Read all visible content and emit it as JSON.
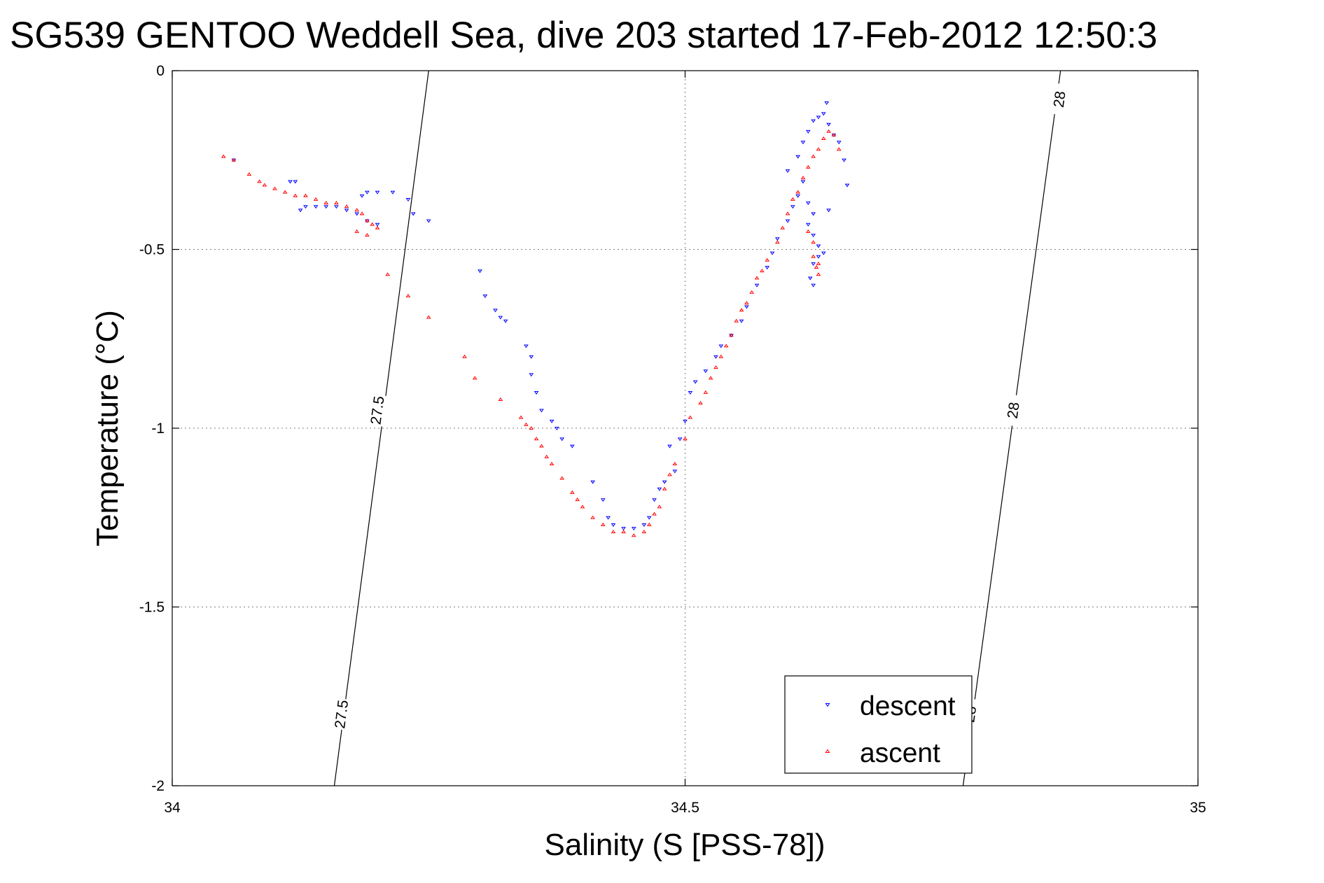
{
  "chart_data": {
    "type": "scatter",
    "title": "SG539 GENTOO Weddell Sea, dive 203 started 17-Feb-2012 12:50:3",
    "xlabel": "Salinity (S [PSS-78])",
    "ylabel": "Temperature (°C)",
    "xlim": [
      34,
      35
    ],
    "ylim": [
      -2,
      0
    ],
    "xticks": [
      34,
      34.5,
      35
    ],
    "xtick_labels": [
      "34",
      "34.5",
      "35"
    ],
    "yticks": [
      0,
      -0.5,
      -1,
      -1.5,
      -2
    ],
    "ytick_labels": [
      "0",
      "-0.5",
      "-1",
      "-1.5",
      "-2"
    ],
    "grid": true,
    "legend_position": "bottom-right",
    "density_contours": [
      {
        "level_label": "27.5",
        "points": [
          [
            34.25,
            0.0
          ],
          [
            34.158,
            -2.0
          ]
        ],
        "label_positions": [
          [
            34.2,
            -0.95
          ],
          [
            34.165,
            -1.8
          ]
        ]
      },
      {
        "level_label": "28",
        "points": [
          [
            34.866,
            0.0
          ],
          [
            34.771,
            -2.0
          ]
        ],
        "label_positions": [
          [
            34.865,
            -0.08
          ],
          [
            34.82,
            -0.95
          ],
          [
            34.778,
            -1.8
          ]
        ]
      }
    ],
    "series": [
      {
        "name": "descent",
        "marker": "triangle-down",
        "color": "#0000ff",
        "points": [
          [
            34.06,
            -0.25
          ],
          [
            34.115,
            -0.31
          ],
          [
            34.12,
            -0.31
          ],
          [
            34.125,
            -0.39
          ],
          [
            34.13,
            -0.38
          ],
          [
            34.14,
            -0.38
          ],
          [
            34.15,
            -0.38
          ],
          [
            34.16,
            -0.38
          ],
          [
            34.17,
            -0.39
          ],
          [
            34.18,
            -0.4
          ],
          [
            34.19,
            -0.42
          ],
          [
            34.2,
            -0.43
          ],
          [
            34.185,
            -0.35
          ],
          [
            34.19,
            -0.34
          ],
          [
            34.2,
            -0.34
          ],
          [
            34.215,
            -0.34
          ],
          [
            34.23,
            -0.36
          ],
          [
            34.235,
            -0.4
          ],
          [
            34.25,
            -0.42
          ],
          [
            34.3,
            -0.56
          ],
          [
            34.305,
            -0.63
          ],
          [
            34.315,
            -0.67
          ],
          [
            34.325,
            -0.7
          ],
          [
            34.32,
            -0.69
          ],
          [
            34.345,
            -0.77
          ],
          [
            34.35,
            -0.8
          ],
          [
            34.35,
            -0.85
          ],
          [
            34.355,
            -0.9
          ],
          [
            34.36,
            -0.95
          ],
          [
            34.37,
            -0.98
          ],
          [
            34.375,
            -1.0
          ],
          [
            34.38,
            -1.03
          ],
          [
            34.39,
            -1.05
          ],
          [
            34.41,
            -1.15
          ],
          [
            34.42,
            -1.2
          ],
          [
            34.425,
            -1.25
          ],
          [
            34.43,
            -1.27
          ],
          [
            34.44,
            -1.28
          ],
          [
            34.45,
            -1.28
          ],
          [
            34.46,
            -1.27
          ],
          [
            34.465,
            -1.25
          ],
          [
            34.47,
            -1.2
          ],
          [
            34.475,
            -1.17
          ],
          [
            34.48,
            -1.15
          ],
          [
            34.49,
            -1.12
          ],
          [
            34.485,
            -1.05
          ],
          [
            34.495,
            -1.03
          ],
          [
            34.5,
            -0.98
          ],
          [
            34.505,
            -0.9
          ],
          [
            34.51,
            -0.87
          ],
          [
            34.52,
            -0.84
          ],
          [
            34.53,
            -0.8
          ],
          [
            34.535,
            -0.77
          ],
          [
            34.545,
            -0.74
          ],
          [
            34.555,
            -0.7
          ],
          [
            34.56,
            -0.66
          ],
          [
            34.57,
            -0.6
          ],
          [
            34.58,
            -0.55
          ],
          [
            34.585,
            -0.51
          ],
          [
            34.59,
            -0.47
          ],
          [
            34.6,
            -0.42
          ],
          [
            34.605,
            -0.38
          ],
          [
            34.61,
            -0.35
          ],
          [
            34.615,
            -0.31
          ],
          [
            34.6,
            -0.28
          ],
          [
            34.61,
            -0.24
          ],
          [
            34.615,
            -0.2
          ],
          [
            34.62,
            -0.17
          ],
          [
            34.625,
            -0.14
          ],
          [
            34.63,
            -0.13
          ],
          [
            34.635,
            -0.12
          ],
          [
            34.638,
            -0.09
          ],
          [
            34.64,
            -0.15
          ],
          [
            34.645,
            -0.18
          ],
          [
            34.65,
            -0.2
          ],
          [
            34.655,
            -0.25
          ],
          [
            34.658,
            -0.32
          ],
          [
            34.62,
            -0.37
          ],
          [
            34.625,
            -0.4
          ],
          [
            34.64,
            -0.39
          ],
          [
            34.62,
            -0.43
          ],
          [
            34.625,
            -0.46
          ],
          [
            34.63,
            -0.49
          ],
          [
            34.63,
            -0.52
          ],
          [
            34.635,
            -0.51
          ],
          [
            34.625,
            -0.54
          ],
          [
            34.622,
            -0.58
          ],
          [
            34.625,
            -0.6
          ]
        ]
      },
      {
        "name": "ascent",
        "marker": "triangle-up",
        "color": "#ff0000",
        "points": [
          [
            34.05,
            -0.24
          ],
          [
            34.06,
            -0.25
          ],
          [
            34.075,
            -0.29
          ],
          [
            34.085,
            -0.31
          ],
          [
            34.09,
            -0.32
          ],
          [
            34.1,
            -0.33
          ],
          [
            34.11,
            -0.34
          ],
          [
            34.12,
            -0.35
          ],
          [
            34.13,
            -0.35
          ],
          [
            34.14,
            -0.36
          ],
          [
            34.15,
            -0.37
          ],
          [
            34.16,
            -0.37
          ],
          [
            34.17,
            -0.38
          ],
          [
            34.18,
            -0.39
          ],
          [
            34.185,
            -0.4
          ],
          [
            34.19,
            -0.42
          ],
          [
            34.195,
            -0.43
          ],
          [
            34.2,
            -0.44
          ],
          [
            34.18,
            -0.45
          ],
          [
            34.19,
            -0.46
          ],
          [
            34.21,
            -0.57
          ],
          [
            34.23,
            -0.63
          ],
          [
            34.25,
            -0.69
          ],
          [
            34.285,
            -0.8
          ],
          [
            34.295,
            -0.86
          ],
          [
            34.32,
            -0.92
          ],
          [
            34.34,
            -0.97
          ],
          [
            34.345,
            -0.99
          ],
          [
            34.35,
            -1.0
          ],
          [
            34.355,
            -1.03
          ],
          [
            34.36,
            -1.05
          ],
          [
            34.365,
            -1.08
          ],
          [
            34.37,
            -1.1
          ],
          [
            34.38,
            -1.14
          ],
          [
            34.39,
            -1.18
          ],
          [
            34.395,
            -1.2
          ],
          [
            34.4,
            -1.22
          ],
          [
            34.41,
            -1.25
          ],
          [
            34.42,
            -1.27
          ],
          [
            34.43,
            -1.29
          ],
          [
            34.44,
            -1.29
          ],
          [
            34.45,
            -1.3
          ],
          [
            34.46,
            -1.29
          ],
          [
            34.465,
            -1.27
          ],
          [
            34.47,
            -1.24
          ],
          [
            34.475,
            -1.22
          ],
          [
            34.48,
            -1.17
          ],
          [
            34.485,
            -1.13
          ],
          [
            34.49,
            -1.1
          ],
          [
            34.5,
            -1.03
          ],
          [
            34.505,
            -0.97
          ],
          [
            34.515,
            -0.93
          ],
          [
            34.52,
            -0.9
          ],
          [
            34.525,
            -0.86
          ],
          [
            34.53,
            -0.83
          ],
          [
            34.535,
            -0.8
          ],
          [
            34.54,
            -0.77
          ],
          [
            34.545,
            -0.74
          ],
          [
            34.55,
            -0.7
          ],
          [
            34.555,
            -0.67
          ],
          [
            34.56,
            -0.65
          ],
          [
            34.565,
            -0.62
          ],
          [
            34.57,
            -0.58
          ],
          [
            34.575,
            -0.56
          ],
          [
            34.58,
            -0.53
          ],
          [
            34.59,
            -0.48
          ],
          [
            34.595,
            -0.44
          ],
          [
            34.6,
            -0.4
          ],
          [
            34.605,
            -0.36
          ],
          [
            34.61,
            -0.34
          ],
          [
            34.615,
            -0.3
          ],
          [
            34.62,
            -0.27
          ],
          [
            34.625,
            -0.24
          ],
          [
            34.63,
            -0.22
          ],
          [
            34.635,
            -0.19
          ],
          [
            34.64,
            -0.17
          ],
          [
            34.645,
            -0.18
          ],
          [
            34.65,
            -0.22
          ],
          [
            34.62,
            -0.45
          ],
          [
            34.625,
            -0.48
          ],
          [
            34.625,
            -0.52
          ],
          [
            34.63,
            -0.54
          ],
          [
            34.63,
            -0.57
          ],
          [
            34.628,
            -0.55
          ]
        ]
      }
    ]
  }
}
